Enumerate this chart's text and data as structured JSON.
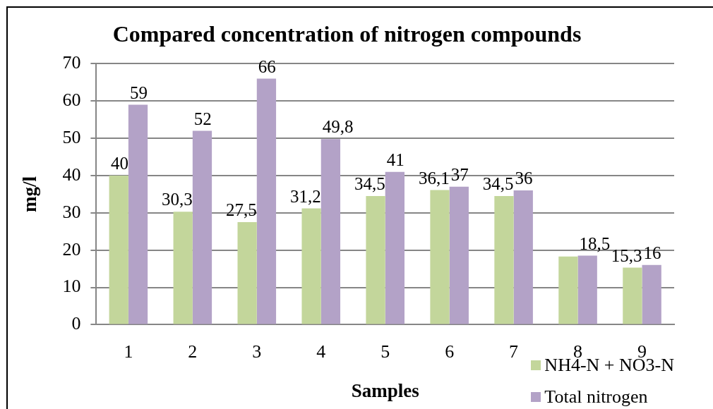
{
  "chart_data": {
    "type": "bar",
    "title": "Compared concentration of nitrogen compounds",
    "xlabel": "Samples",
    "ylabel": "mg/l",
    "categories": [
      "1",
      "2",
      "3",
      "4",
      "5",
      "6",
      "7",
      "8",
      "9"
    ],
    "series": [
      {
        "name": "NH4-N + NO3-N",
        "color": "#c3d69b",
        "values": [
          40,
          30.3,
          27.5,
          31.2,
          34.5,
          36.1,
          34.5,
          18.3,
          15.3
        ],
        "value_labels": [
          "40",
          "30,3",
          "27,5",
          "31,2",
          "34,5",
          "36,1",
          "34,5",
          null,
          "15,3"
        ]
      },
      {
        "name": "Total nitrogen",
        "color": "#b3a2c7",
        "values": [
          59,
          52,
          66,
          49.8,
          41,
          37,
          36,
          18.5,
          16
        ],
        "value_labels": [
          "59",
          "52",
          "66",
          "49,8",
          "41",
          "37",
          "36",
          "18,5",
          "16"
        ]
      }
    ],
    "ylim": [
      0,
      70
    ],
    "yticks": [
      0,
      10,
      20,
      30,
      40,
      50,
      60,
      70
    ],
    "grid": "y",
    "legend": "bottom right"
  }
}
